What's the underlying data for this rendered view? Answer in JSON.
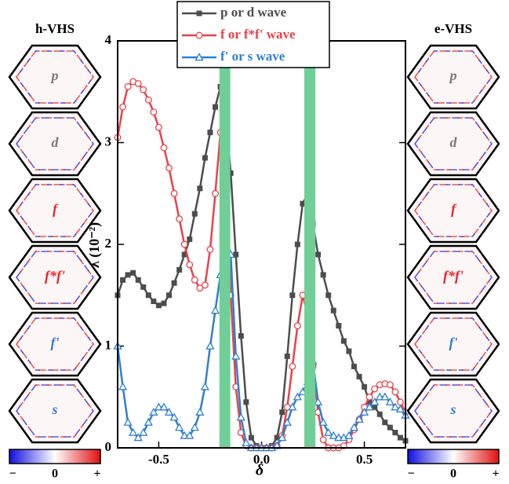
{
  "chart_data": {
    "type": "line",
    "xlabel": "δ",
    "ylabel": "λ (10⁻²)",
    "xlim": [
      -0.7,
      0.7
    ],
    "ylim": [
      0,
      4
    ],
    "xticks": [
      -0.5,
      {
        "value": 0,
        "label": "0.0"
      },
      0.5
    ],
    "yticks": [
      0,
      1,
      2,
      3,
      4
    ],
    "legend": "top-center",
    "bands": [
      [
        -0.205,
        -0.152
      ],
      [
        0.208,
        0.262
      ]
    ],
    "band_color": "#6fcf97",
    "x": [
      -0.7,
      -0.675,
      -0.65,
      -0.625,
      -0.6,
      -0.575,
      -0.55,
      -0.525,
      -0.5,
      -0.475,
      -0.45,
      -0.425,
      -0.4,
      -0.375,
      -0.35,
      -0.325,
      -0.3,
      -0.275,
      -0.25,
      -0.225,
      -0.2,
      -0.175,
      -0.15,
      -0.125,
      -0.1,
      -0.075,
      -0.05,
      -0.025,
      0,
      0.025,
      0.05,
      0.075,
      0.1,
      0.125,
      0.15,
      0.175,
      0.2,
      0.225,
      0.25,
      0.275,
      0.3,
      0.325,
      0.35,
      0.375,
      0.4,
      0.425,
      0.45,
      0.475,
      0.5,
      0.525,
      0.55,
      0.575,
      0.6,
      0.625,
      0.65,
      0.675,
      0.7
    ],
    "series": [
      {
        "name": "p or d wave",
        "color": "#4d4d4d",
        "marker": "square",
        "values": [
          1.5,
          1.65,
          1.7,
          1.72,
          1.65,
          1.58,
          1.5,
          1.44,
          1.4,
          1.42,
          1.5,
          1.62,
          1.75,
          1.9,
          2.05,
          2.3,
          2.55,
          2.85,
          3.1,
          3.35,
          3.55,
          3.3,
          2.7,
          1.9,
          1.1,
          0.45,
          0.1,
          0.02,
          0,
          0,
          0.02,
          0.1,
          0.35,
          0.9,
          1.5,
          2.0,
          2.4,
          2.5,
          2.2,
          1.9,
          1.7,
          1.5,
          1.35,
          1.2,
          1.05,
          0.95,
          0.8,
          0.7,
          0.6,
          0.45,
          0.4,
          0.33,
          0.25,
          0.2,
          0.15,
          0.1,
          0.07
        ]
      },
      {
        "name": "f or f*f' wave",
        "color": "#e8424a",
        "marker": "circle",
        "values": [
          3.05,
          3.35,
          3.55,
          3.6,
          3.58,
          3.52,
          3.42,
          3.3,
          3.15,
          2.95,
          2.75,
          2.5,
          2.25,
          2.0,
          1.8,
          1.65,
          1.57,
          1.6,
          1.95,
          2.5,
          3.1,
          2.8,
          1.5,
          0.6,
          0.15,
          0.02,
          0,
          0,
          0,
          0,
          0,
          0.02,
          0.12,
          0.4,
          0.8,
          1.2,
          1.5,
          1.3,
          0.8,
          0.35,
          0.08,
          0,
          0,
          0,
          0.02,
          0.08,
          0.18,
          0.28,
          0.4,
          0.5,
          0.58,
          0.62,
          0.63,
          0.62,
          0.55,
          0.45,
          0.35
        ]
      },
      {
        "name": "f' or s wave",
        "color": "#2f7fd1",
        "marker": "triangle",
        "values": [
          1.0,
          0.6,
          0.25,
          0.15,
          0.1,
          0.15,
          0.25,
          0.35,
          0.4,
          0.4,
          0.35,
          0.3,
          0.2,
          0.12,
          0.12,
          0.2,
          0.35,
          0.6,
          1.0,
          1.35,
          1.7,
          2.1,
          1.9,
          0.9,
          0.3,
          0.05,
          0,
          0,
          0,
          0,
          0,
          0.02,
          0.1,
          0.25,
          0.4,
          0.5,
          0.55,
          0.65,
          0.85,
          0.45,
          0.25,
          0.15,
          0.12,
          0.1,
          0.1,
          0.12,
          0.2,
          0.28,
          0.35,
          0.4,
          0.45,
          0.5,
          0.5,
          0.45,
          0.4,
          0.38,
          0.32
        ]
      }
    ]
  },
  "panels": [
    {
      "title": "h-VHS",
      "labels": [
        "p",
        "d",
        "f",
        "f*f'",
        "f'",
        "s"
      ]
    },
    {
      "title": "e-VHS",
      "labels": [
        "p",
        "d",
        "f",
        "f*f'",
        "f'",
        "s"
      ]
    }
  ],
  "label_colors": [
    "#7a7a7a",
    "#7a7a7a",
    "#e8242c",
    "#e8242c",
    "#2f7fd1",
    "#2f7fd1"
  ],
  "colorbar": [
    "−",
    "0",
    "+"
  ]
}
